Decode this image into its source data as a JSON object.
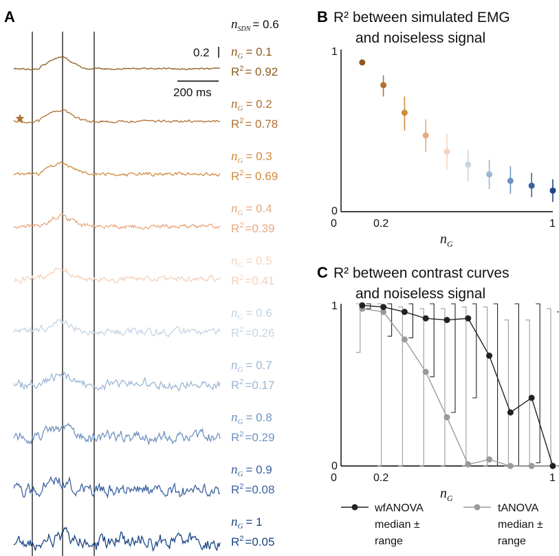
{
  "panel_a": {
    "letter": "A",
    "sdn_label": {
      "var": "n",
      "sub": "SDN",
      "value": "= 0.6"
    },
    "scale_value": "0.2",
    "scale_time": "200 ms",
    "traces": [
      {
        "ng": "= 0.1",
        "r2": "= 0.92",
        "color": "#8c5a1e",
        "noise": 0.1,
        "star": false
      },
      {
        "ng": "= 0.2",
        "r2": "= 0.78",
        "color": "#b07030",
        "noise": 0.2,
        "star": true
      },
      {
        "ng": "= 0.3",
        "r2": "= 0.69",
        "color": "#d08a3c",
        "noise": 0.3,
        "star": false
      },
      {
        "ng": "= 0.4",
        "r2": "=0.39",
        "color": "#e8a880",
        "noise": 0.4,
        "star": false
      },
      {
        "ng": "= 0.5",
        "r2": "=0.41",
        "color": "#f5d2bc",
        "noise": 0.5,
        "star": false
      },
      {
        "ng": "= 0.6",
        "r2": "=0.26",
        "color": "#c5d4e4",
        "noise": 0.6,
        "star": false
      },
      {
        "ng": "= 0.7",
        "r2": "=0.17",
        "color": "#9cb6d3",
        "noise": 0.7,
        "star": false
      },
      {
        "ng": "= 0.8",
        "r2": "=0.29",
        "color": "#6f93c0",
        "noise": 0.8,
        "star": false
      },
      {
        "ng": "= 0.9",
        "r2": "=0.08",
        "color": "#3d62a0",
        "noise": 0.9,
        "star": false
      },
      {
        "ng": "= 1",
        "r2": "=0.05",
        "color": "#1a4585",
        "noise": 1.0,
        "star": false
      }
    ]
  },
  "panel_b": {
    "letter": "B",
    "title_line1": "R² between simulated EMG",
    "title_line2": "and noiseless signal",
    "xlabel_var": "n",
    "xlabel_sub": "G"
  },
  "panel_c": {
    "letter": "C",
    "title_line1": "R² between contrast curves",
    "title_line2": "and noiseless signal",
    "xlabel_var": "n",
    "xlabel_sub": "G",
    "legend": [
      {
        "line1": "wfANOVA",
        "line2": "median ±",
        "line3": "range",
        "color": "#222222"
      },
      {
        "line1": "tANOVA",
        "line2": "median ±",
        "line3": "range",
        "color": "#9a9a9a"
      }
    ]
  },
  "chart_data": [
    {
      "type": "scatter",
      "title": "R² between simulated EMG and noiseless signal",
      "xlabel": "n_G",
      "ylabel": "",
      "xlim": [
        0,
        1
      ],
      "ylim": [
        0,
        1
      ],
      "xticks": [
        "0",
        "0.2",
        "1"
      ],
      "yticks": [
        "0",
        "1"
      ],
      "x": [
        0.1,
        0.2,
        0.3,
        0.4,
        0.5,
        0.6,
        0.7,
        0.8,
        0.9,
        1.0
      ],
      "y": [
        0.92,
        0.78,
        0.61,
        0.47,
        0.37,
        0.29,
        0.23,
        0.19,
        0.16,
        0.13
      ],
      "err_low": [
        0.91,
        0.71,
        0.5,
        0.37,
        0.26,
        0.19,
        0.14,
        0.11,
        0.09,
        0.06
      ],
      "err_high": [
        0.93,
        0.84,
        0.71,
        0.57,
        0.48,
        0.38,
        0.32,
        0.28,
        0.24,
        0.2
      ],
      "colors": [
        "#8c5a1e",
        "#b07030",
        "#d08a3c",
        "#e8a880",
        "#f5d2bc",
        "#c5d4e4",
        "#9cb6d3",
        "#6f93c0",
        "#3d62a0",
        "#1a4585"
      ]
    },
    {
      "type": "line",
      "title": "R² between contrast curves and noiseless signal",
      "xlabel": "n_G",
      "ylabel": "",
      "xlim": [
        0,
        1
      ],
      "ylim": [
        0,
        1
      ],
      "xticks": [
        "0",
        "0.2",
        "1"
      ],
      "yticks": [
        "0",
        "1"
      ],
      "x": [
        0.1,
        0.2,
        0.3,
        0.4,
        0.5,
        0.6,
        0.7,
        0.8,
        0.9,
        1.0
      ],
      "series": [
        {
          "name": "wfANOVA",
          "color": "#222222",
          "values": [
            0.99,
            0.98,
            0.95,
            0.91,
            0.9,
            0.91,
            0.68,
            0.33,
            0.42,
            0.0
          ],
          "range_low": [
            0.97,
            0.8,
            0.79,
            0.55,
            0.33,
            0.42,
            0.0,
            0.0,
            0.02,
            0.0
          ],
          "range_high": [
            1.0,
            1.0,
            1.0,
            1.0,
            1.0,
            1.0,
            1.0,
            1.0,
            1.0,
            0.95
          ]
        },
        {
          "name": "tANOVA",
          "color": "#9a9a9a",
          "values": [
            0.97,
            0.95,
            0.78,
            0.58,
            0.3,
            0.01,
            0.04,
            0.0,
            0.0,
            0.0
          ],
          "range_low": [
            0.7,
            0.0,
            0.0,
            0.0,
            0.0,
            0.0,
            0.0,
            0.0,
            0.0,
            0.0
          ],
          "range_high": [
            1.0,
            1.0,
            0.98,
            0.97,
            0.97,
            0.98,
            0.98,
            0.9,
            0.9,
            0.97
          ]
        }
      ]
    }
  ]
}
